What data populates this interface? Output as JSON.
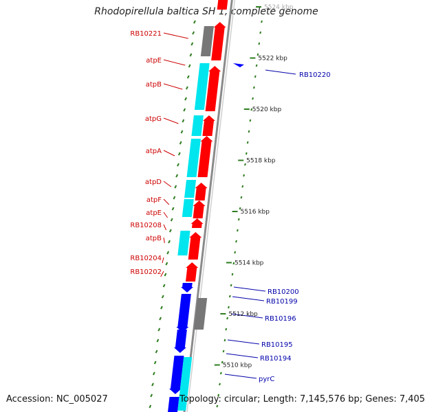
{
  "title": "Rhodopirellula baltica SH 1, complete genome",
  "footer": {
    "accession": "Accession: NC_005027",
    "summary": "Topology: circular; Length: 7,145,576 bp; Genes: 7,405"
  },
  "ticks": [
    {
      "label": "5524 kbp"
    },
    {
      "label": "5522 kbp"
    },
    {
      "label": "5520 kbp"
    },
    {
      "label": "5518 kbp"
    },
    {
      "label": "5516 kbp"
    },
    {
      "label": "5514 kbp"
    },
    {
      "label": "5512 kbp"
    },
    {
      "label": "5510 kbp"
    }
  ],
  "genes_left": [
    {
      "label": "RB10221"
    },
    {
      "label": "atpE"
    },
    {
      "label": "atpB"
    },
    {
      "label": "atpG"
    },
    {
      "label": "atpA"
    },
    {
      "label": "atpD"
    },
    {
      "label": "atpF"
    },
    {
      "label": "atpE"
    },
    {
      "label": "RB10208"
    },
    {
      "label": "atpB"
    },
    {
      "label": "RB10204"
    },
    {
      "label": "RB10202"
    }
  ],
  "genes_right": [
    {
      "label": "RB10220"
    },
    {
      "label": "RB10200"
    },
    {
      "label": "RB10199"
    },
    {
      "label": "RB10196"
    },
    {
      "label": "RB10195"
    },
    {
      "label": "RB10194"
    },
    {
      "label": "pyrC"
    }
  ],
  "colors": {
    "reverse_strand": "#ff0000",
    "forward_strand": "#0000ff",
    "cyan_feature": "#00e5ee",
    "gray_feature": "#777777",
    "label_left": "#cc0000",
    "label_right": "#0000aa",
    "gc_dashes": "#2e7d1f"
  }
}
